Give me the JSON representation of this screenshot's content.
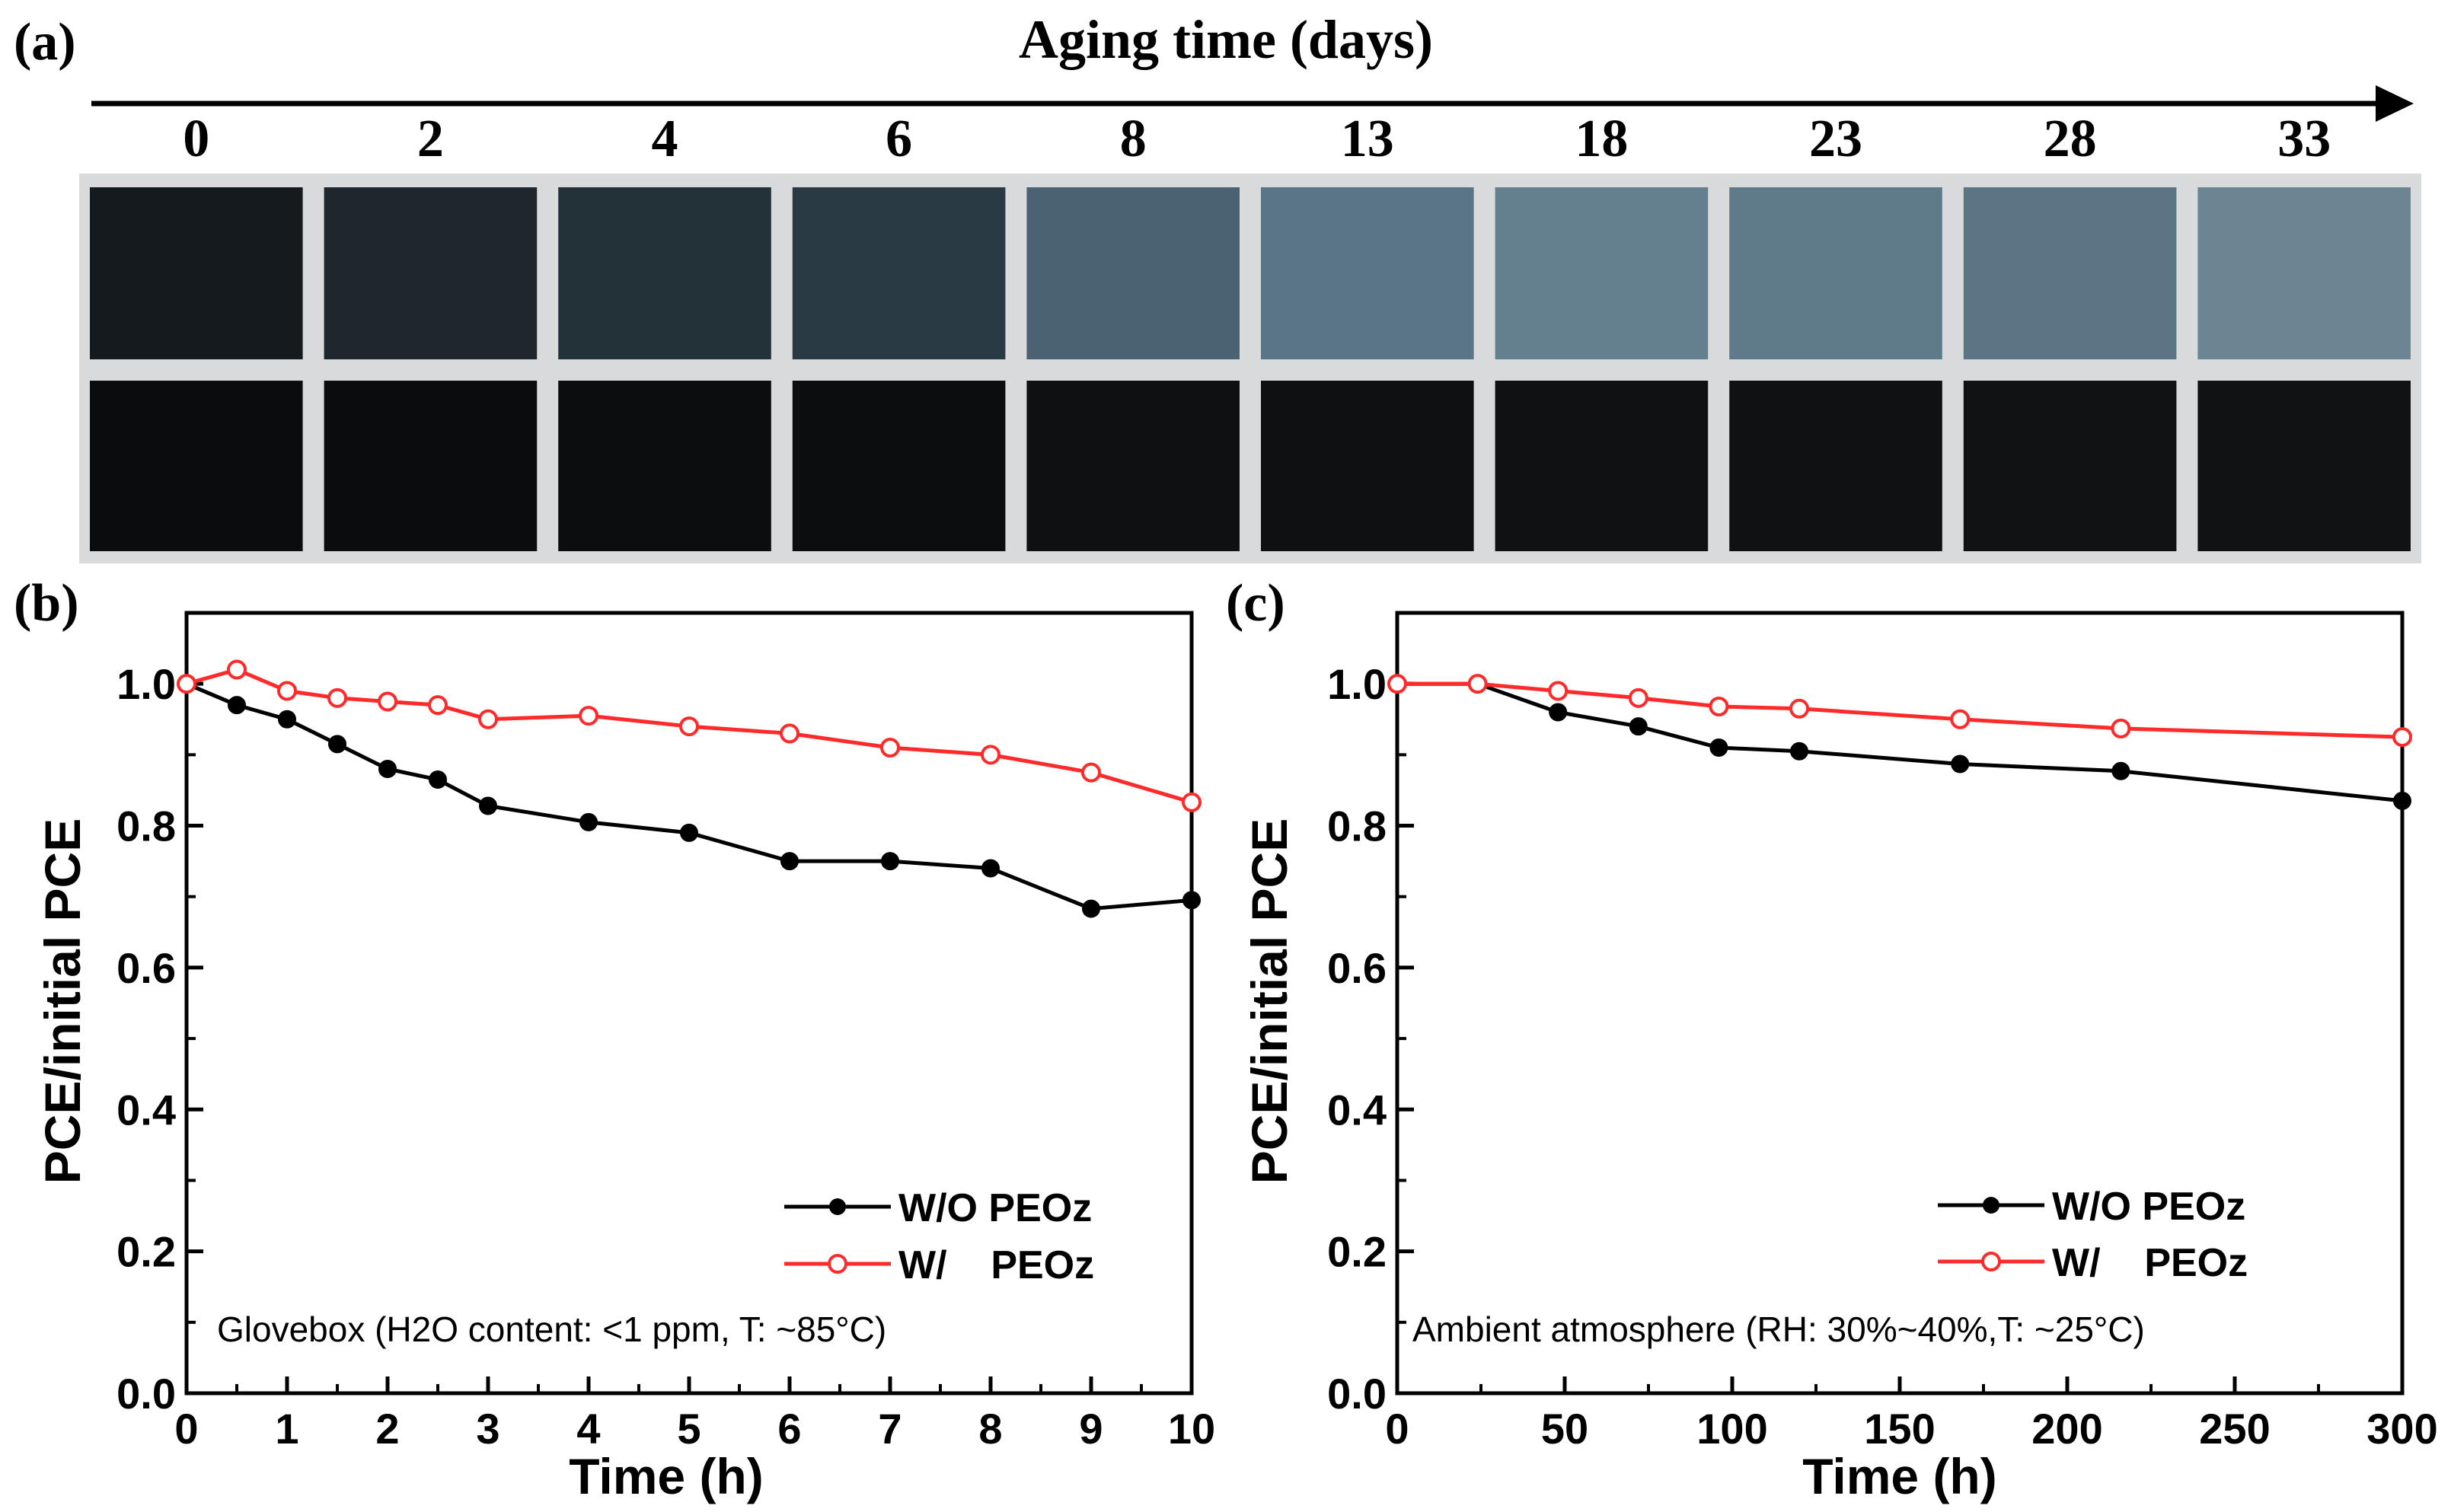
{
  "panel_a": {
    "label": "(a)",
    "title": "Aging time (days)",
    "days": [
      "0",
      "2",
      "4",
      "6",
      "8",
      "13",
      "18",
      "23",
      "28",
      "33"
    ],
    "top_row_tone": [
      "#141a1d",
      "#1d272c",
      "#233139",
      "#2a3a44",
      "#4a6272",
      "#5a7585",
      "#64808f",
      "#5f7b8a",
      "#5c7585",
      "#6c8593"
    ],
    "bottom_row_tone": [
      "#0b0c0d",
      "#0b0c0d",
      "#0c0d0e",
      "#0c0d0e",
      "#0e1011",
      "#0e1011",
      "#0f1112",
      "#0f1112",
      "#101213",
      "#101213"
    ]
  },
  "chart_data": [
    {
      "type": "line",
      "panel_label": "(b)",
      "xlabel": "Time (h)",
      "ylabel": "PCE/initial PCE",
      "xlim": [
        0,
        10
      ],
      "ylim": [
        0,
        1.1
      ],
      "xticks": [
        "0",
        "1",
        "2",
        "3",
        "4",
        "5",
        "6",
        "7",
        "8",
        "9",
        "10"
      ],
      "yticks": [
        "0.0",
        "0.2",
        "0.4",
        "0.6",
        "0.8",
        "1.0"
      ],
      "annotation": "Glovebox (H2O content: <1 ppm, T: ~85°C)",
      "legend_position": "bottom-right",
      "series": [
        {
          "name": "W/O PEOz",
          "color": "#000000",
          "marker": "filled-circle",
          "x": [
            0,
            0.5,
            1,
            1.5,
            2,
            2.5,
            3,
            4,
            5,
            6,
            7,
            8,
            9,
            10
          ],
          "y": [
            1.0,
            0.97,
            0.95,
            0.915,
            0.88,
            0.865,
            0.828,
            0.805,
            0.79,
            0.75,
            0.75,
            0.74,
            0.683,
            0.695
          ]
        },
        {
          "name": "W/    PEOz",
          "color": "#ff2a2a",
          "marker": "open-circle",
          "x": [
            0,
            0.5,
            1,
            1.5,
            2,
            2.5,
            3,
            4,
            5,
            6,
            7,
            8,
            9,
            10
          ],
          "y": [
            1.0,
            1.02,
            0.99,
            0.98,
            0.975,
            0.97,
            0.95,
            0.955,
            0.94,
            0.93,
            0.91,
            0.9,
            0.875,
            0.833
          ]
        }
      ]
    },
    {
      "type": "line",
      "panel_label": "(c)",
      "xlabel": "Time (h)",
      "ylabel": "PCE/initial PCE",
      "xlim": [
        0,
        300
      ],
      "ylim": [
        0,
        1.1
      ],
      "xticks": [
        "0",
        "50",
        "100",
        "150",
        "200",
        "250",
        "300"
      ],
      "yticks": [
        "0.0",
        "0.2",
        "0.4",
        "0.6",
        "0.8",
        "1.0"
      ],
      "annotation": "Ambient atmosphere (RH: 30%~40%,T: ~25°C)",
      "legend_position": "bottom-right",
      "series": [
        {
          "name": "W/O PEOz",
          "color": "#000000",
          "marker": "filled-circle",
          "x": [
            0,
            24,
            48,
            72,
            96,
            120,
            168,
            216,
            300
          ],
          "y": [
            1.0,
            1.0,
            0.96,
            0.94,
            0.91,
            0.905,
            0.887,
            0.877,
            0.835
          ]
        },
        {
          "name": "W/    PEOz",
          "color": "#ff2a2a",
          "marker": "open-circle",
          "x": [
            0,
            24,
            48,
            72,
            96,
            120,
            168,
            216,
            300
          ],
          "y": [
            1.0,
            1.0,
            0.99,
            0.98,
            0.968,
            0.965,
            0.95,
            0.937,
            0.925
          ]
        }
      ]
    }
  ]
}
